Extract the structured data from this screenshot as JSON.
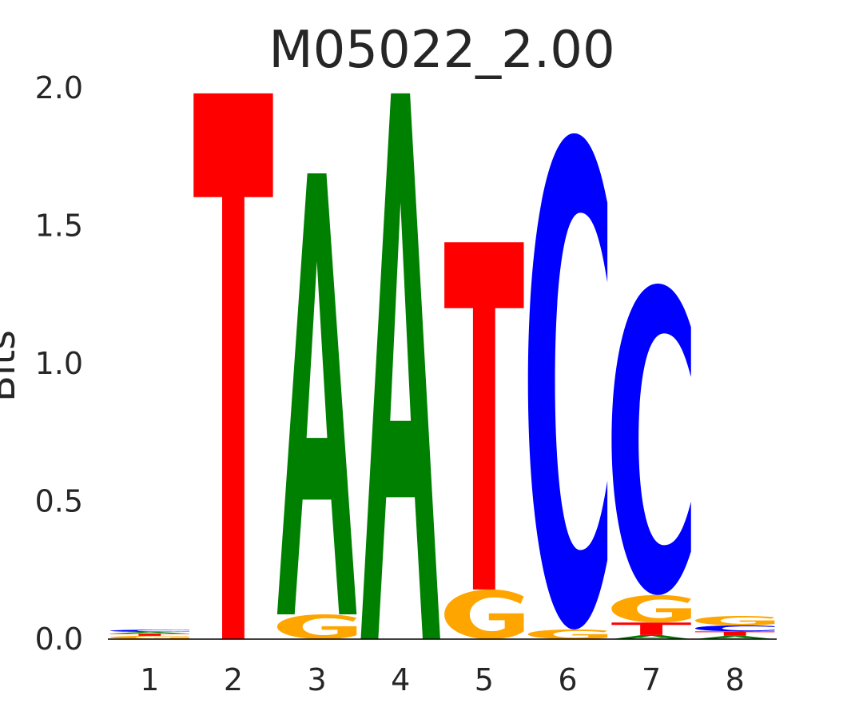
{
  "chart_data": {
    "type": "sequence-logo",
    "title": "M05022_2.00",
    "xlabel": "",
    "ylabel": "Bits",
    "ylim": [
      0,
      2.0
    ],
    "yticks": [
      "0.0",
      "0.5",
      "1.0",
      "1.5",
      "2.0"
    ],
    "ytick_values": [
      0,
      0.5,
      1.0,
      1.5,
      2.0
    ],
    "positions": [
      "1",
      "2",
      "3",
      "4",
      "5",
      "6",
      "7",
      "8"
    ],
    "grid": false,
    "colors": {
      "A": "#008000",
      "C": "#0000ff",
      "G": "#ffa500",
      "T": "#ff0000"
    },
    "stacks": [
      [
        {
          "letter": "G",
          "height": 0.012
        },
        {
          "letter": "T",
          "height": 0.008
        },
        {
          "letter": "A",
          "height": 0.006
        },
        {
          "letter": "C",
          "height": 0.008
        }
      ],
      [
        {
          "letter": "T",
          "height": 1.98
        }
      ],
      [
        {
          "letter": "G",
          "height": 0.09
        },
        {
          "letter": "A",
          "height": 1.6
        }
      ],
      [
        {
          "letter": "A",
          "height": 1.98
        }
      ],
      [
        {
          "letter": "G",
          "height": 0.18
        },
        {
          "letter": "T",
          "height": 1.26
        }
      ],
      [
        {
          "letter": "G",
          "height": 0.035
        },
        {
          "letter": "C",
          "height": 1.8
        }
      ],
      [
        {
          "letter": "A",
          "height": 0.015
        },
        {
          "letter": "T",
          "height": 0.045
        },
        {
          "letter": "G",
          "height": 0.1
        },
        {
          "letter": "C",
          "height": 1.13
        }
      ],
      [
        {
          "letter": "A",
          "height": 0.012
        },
        {
          "letter": "T",
          "height": 0.016
        },
        {
          "letter": "C",
          "height": 0.022
        },
        {
          "letter": "G",
          "height": 0.034
        }
      ]
    ]
  }
}
